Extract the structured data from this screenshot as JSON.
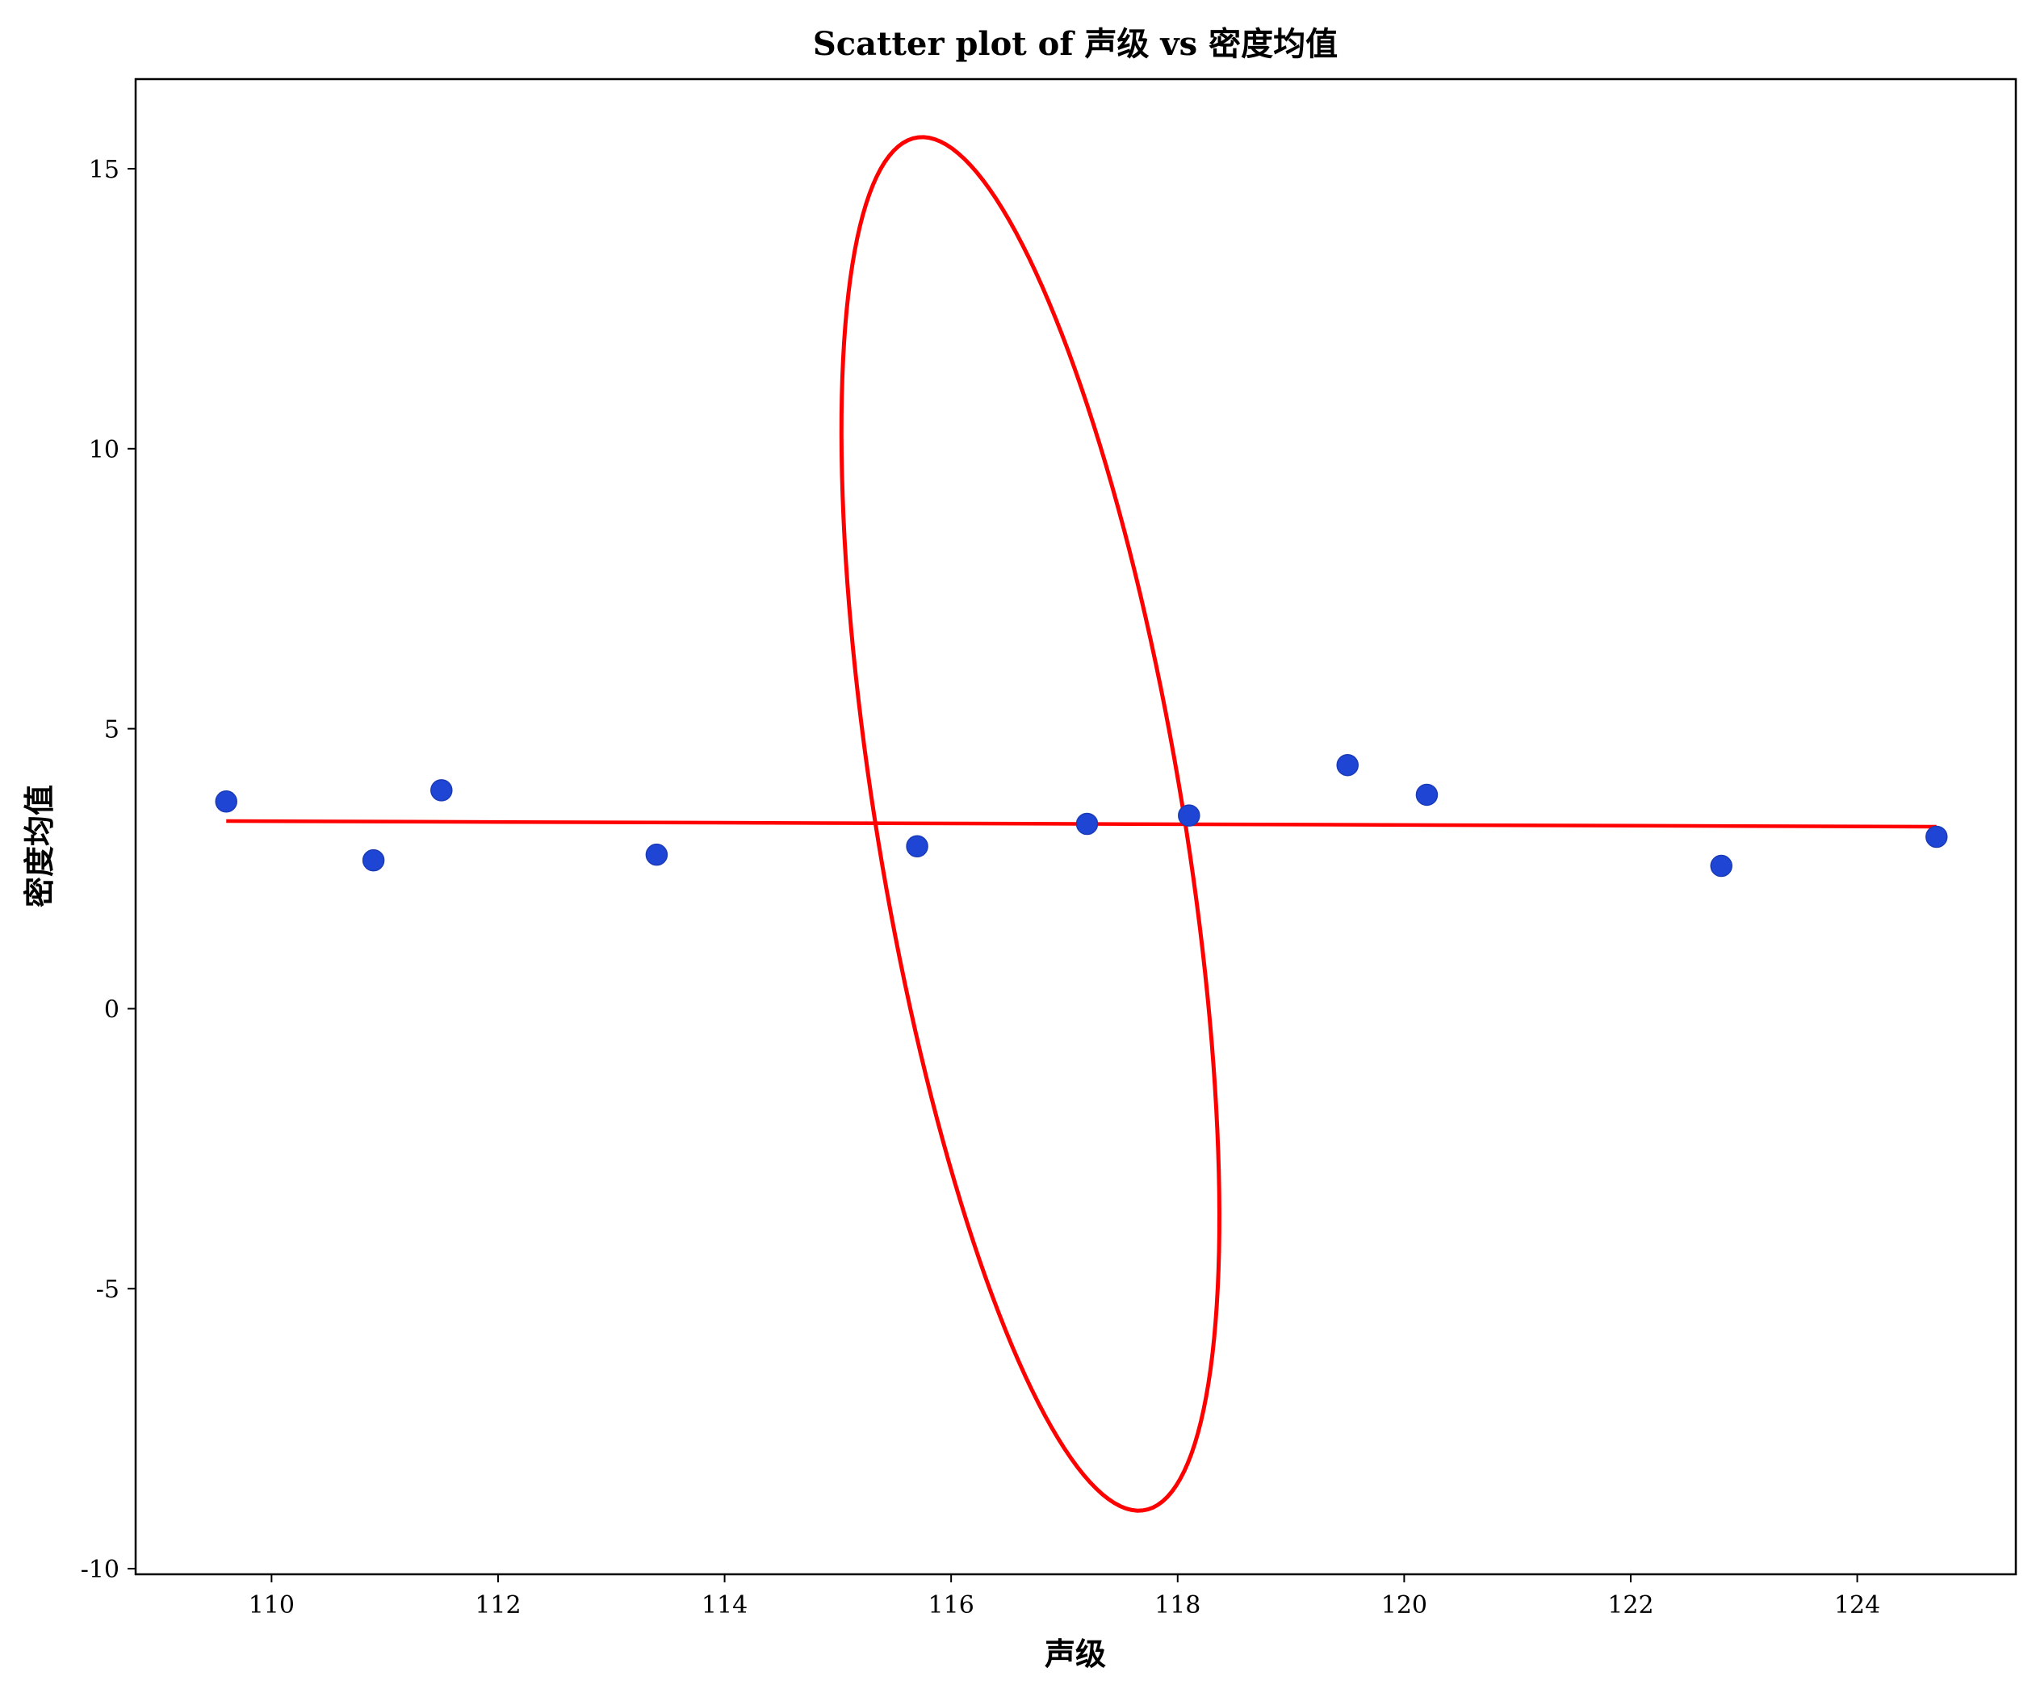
{
  "chart_data": {
    "type": "scatter",
    "title": "Scatter plot of 声级 vs 密度均值",
    "xlabel": "声级",
    "ylabel": "密度均值",
    "xlim": [
      108.8,
      125.4
    ],
    "ylim": [
      -10.1,
      16.6
    ],
    "xticks": [
      110,
      112,
      114,
      116,
      118,
      120,
      122,
      124
    ],
    "yticks": [
      -10,
      -5,
      0,
      5,
      10,
      15
    ],
    "ytick_labels": [
      "-10",
      "-5",
      "0",
      "5",
      "10",
      "15"
    ],
    "grid": false,
    "series": [
      {
        "type": "scatter",
        "color": "#1f45d4",
        "points": [
          {
            "x": 109.6,
            "y": 3.7
          },
          {
            "x": 110.9,
            "y": 2.65
          },
          {
            "x": 111.5,
            "y": 3.9
          },
          {
            "x": 113.4,
            "y": 2.75
          },
          {
            "x": 115.7,
            "y": 2.9
          },
          {
            "x": 117.2,
            "y": 3.3
          },
          {
            "x": 118.1,
            "y": 3.45
          },
          {
            "x": 119.5,
            "y": 4.35
          },
          {
            "x": 120.2,
            "y": 3.82
          },
          {
            "x": 122.8,
            "y": 2.55
          },
          {
            "x": 124.7,
            "y": 3.07
          }
        ]
      },
      {
        "type": "line",
        "color": "#ff0000",
        "points": [
          {
            "x": 109.6,
            "y": 3.35
          },
          {
            "x": 124.7,
            "y": 3.25
          }
        ]
      }
    ],
    "annotations": [
      {
        "type": "ellipse",
        "color": "#ff0000",
        "center": {
          "x": 116.7,
          "y": 3.3
        },
        "semi_major": 12.3,
        "semi_minor": 1.38,
        "tilt_deg": -4.4
      }
    ]
  }
}
